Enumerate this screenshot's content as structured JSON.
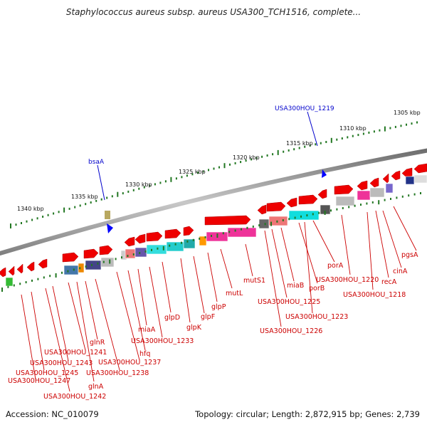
{
  "title": "Staphylococcus aureus subsp. aureus USA300_TCH1516, complete...",
  "footer": {
    "accession": "Accession: NC_010079",
    "summary": "Topology: circular; Length: 2,872,915 bp; Genes: 2,739"
  },
  "colors": {
    "gene_label": "#cc0000",
    "highlight_label": "#0000cc",
    "tick": "#227722",
    "backbone": "#8a8a8a",
    "arrow": "#ee0000"
  },
  "kbp_labels": [
    "1305 kbp",
    "1310 kbp",
    "1315 kbp",
    "1320 kbp",
    "1325 kbp",
    "1330 kbp",
    "1335 kbp",
    "1340 kbp"
  ],
  "highlight_genes": [
    "USA300HOU_1219",
    "bsaA"
  ],
  "gene_labels": [
    "pgsA",
    "cinA",
    "recA",
    "USA300HOU_1218",
    "USA300HOU_1220",
    "porA",
    "porB",
    "USA300HOU_1223",
    "miaB",
    "USA300HOU_1225",
    "USA300HOU_1226",
    "mutS1",
    "mutL",
    "glpP",
    "glpF",
    "glpK",
    "glpD",
    "USA300HOU_1233",
    "miaA",
    "hfq",
    "USA300HOU_1237",
    "glnR",
    "USA300HOU_1238",
    "USA300HOU_1241",
    "glnA",
    "USA300HOU_1243",
    "USA300HOU_1242",
    "USA300HOU_1245",
    "USA300HOU_1247"
  ]
}
